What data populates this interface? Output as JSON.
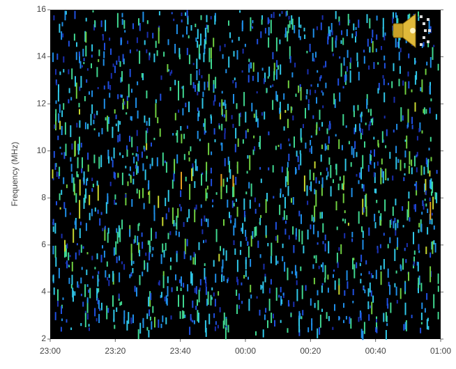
{
  "chart_data": {
    "type": "spectrogram",
    "y_label": "Frequency (MHz)",
    "ylim": [
      2,
      16
    ],
    "yticks": [
      2,
      4,
      6,
      8,
      10,
      12,
      14,
      16
    ],
    "x_labels": [
      "23:00",
      "23:20",
      "23:40",
      "00:00",
      "00:20",
      "00:40",
      "01:00"
    ],
    "background": "#000000"
  }
}
